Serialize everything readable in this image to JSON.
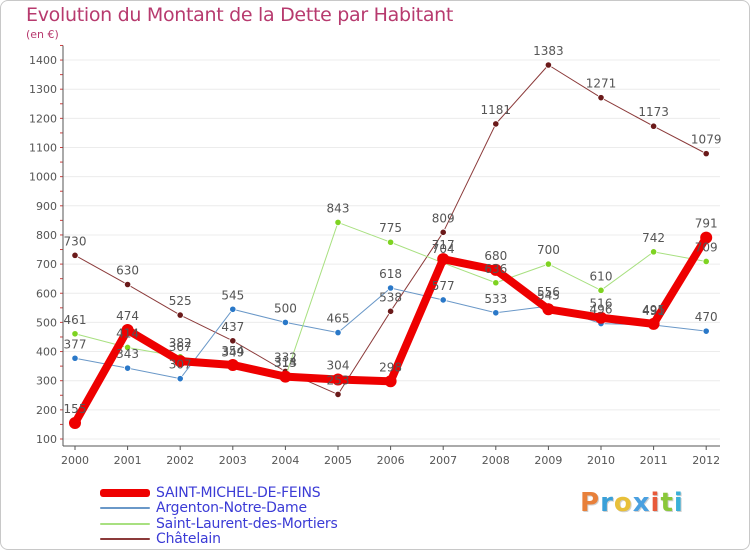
{
  "title": "Evolution du Montant de la Dette par Habitant",
  "subtitle": "(en €)",
  "logo_text": "Proxiti",
  "colors": {
    "title": "#b73a6e",
    "axis": "#555555",
    "grid": "#ececec",
    "label": "#555555",
    "legend_text": "#3b3bd6"
  },
  "chart_data": {
    "type": "line",
    "title": "Evolution du Montant de la Dette par Habitant",
    "ylabel": "(en €)",
    "xlabel": "",
    "ylim": [
      100,
      1450
    ],
    "yticks": [
      100,
      200,
      300,
      400,
      500,
      600,
      700,
      800,
      900,
      1000,
      1100,
      1200,
      1300,
      1400
    ],
    "x": [
      "2000",
      "2001",
      "2002",
      "2003",
      "2004",
      "2005",
      "2006",
      "2007",
      "2008",
      "2009",
      "2010",
      "2011",
      "2012"
    ],
    "grid": true,
    "legend_position": "bottom-left",
    "series": [
      {
        "name": "Châtelain",
        "color": "#8b3a3a",
        "marker": "#6b1a1a",
        "width": 1,
        "values": [
          730,
          630,
          525,
          437,
          332,
          253,
          538,
          809,
          1181,
          1383,
          1271,
          1173,
          1079
        ],
        "labels": [
          "730",
          "630",
          "525",
          "437",
          "332",
          "253",
          "538",
          "809",
          "1181",
          "1383",
          "1271",
          "1173",
          "1079"
        ]
      },
      {
        "name": "Argenton-Notre-Dame",
        "color": "#6a98c8",
        "marker": "#2a78c8",
        "width": 1,
        "values": [
          377,
          343,
          307,
          545,
          500,
          465,
          618,
          577,
          533,
          556,
          496,
          491,
          470
        ],
        "labels": [
          "377",
          "343",
          "307",
          "545",
          "500",
          "465",
          "618",
          "577",
          "533",
          "556",
          "496",
          "491",
          "470"
        ]
      },
      {
        "name": "Saint-Laurent-des-Mortiers",
        "color": "#a8e080",
        "marker": "#7ed321",
        "width": 1,
        "values": [
          461,
          414,
          382,
          349,
          313,
          843,
          775,
          704,
          636,
          700,
          610,
          742,
          709
        ],
        "labels": [
          "461",
          "414",
          "382",
          "349",
          "313",
          "843",
          "775",
          "704",
          "636",
          "700",
          "610",
          "742",
          "709"
        ]
      },
      {
        "name": "SAINT-MICHEL-DE-FEINS",
        "color": "#ee0000",
        "marker": "#ee0000",
        "width": 8,
        "values": [
          155,
          474,
          367,
          354,
          314,
          304,
          298,
          717,
          680,
          545,
          516,
          495,
          791
        ],
        "labels": [
          "155",
          "474",
          "367",
          "354",
          "314",
          "304",
          "298",
          "717",
          "680",
          "545",
          "516",
          "495",
          "791"
        ]
      }
    ],
    "legend_order": [
      "SAINT-MICHEL-DE-FEINS",
      "Argenton-Notre-Dame",
      "Saint-Laurent-des-Mortiers",
      "Châtelain"
    ]
  }
}
